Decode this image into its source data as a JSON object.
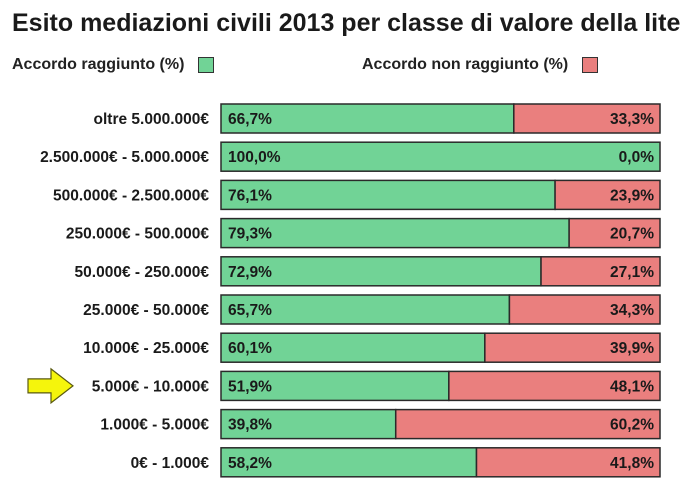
{
  "title": "Esito mediazioni civili 2013 per classe di valore della lite",
  "legend": {
    "reached_label": "Accordo raggiunto (%)",
    "not_reached_label": "Accordo non raggiunto (%)"
  },
  "colors": {
    "reached": "#71d396",
    "not_reached": "#ea7f7e",
    "bar_border": "#2a2a2a",
    "arrow_fill": "#f5f50c",
    "arrow_stroke": "#5a5a10"
  },
  "highlight": {
    "category": "5.000€ - 10.000€",
    "icon": "arrow-right-icon"
  },
  "chart_data": {
    "type": "bar",
    "orientation": "horizontal",
    "stacked": true,
    "xlim": [
      0,
      100
    ],
    "categories": [
      "oltre 5.000.000€",
      "2.500.000€ - 5.000.000€",
      "500.000€ - 2.500.000€",
      "250.000€ - 500.000€",
      "50.000€ - 250.000€",
      "25.000€ - 50.000€",
      "10.000€ - 25.000€",
      "5.000€ - 10.000€",
      "1.000€ - 5.000€",
      "0€ - 1.000€"
    ],
    "series": [
      {
        "name": "Accordo raggiunto (%)",
        "values": [
          66.7,
          100.0,
          76.1,
          79.3,
          72.9,
          65.7,
          60.1,
          51.9,
          39.8,
          58.2
        ],
        "labels": [
          "66,7%",
          "100,0%",
          "76,1%",
          "79,3%",
          "72,9%",
          "65,7%",
          "60,1%",
          "51,9%",
          "39,8%",
          "58,2%"
        ]
      },
      {
        "name": "Accordo non raggiunto (%)",
        "values": [
          33.3,
          0.0,
          23.9,
          20.7,
          27.1,
          34.3,
          39.9,
          48.1,
          60.2,
          41.8
        ],
        "labels": [
          "33,3%",
          "0,0%",
          "23,9%",
          "20,7%",
          "27,1%",
          "34,3%",
          "39,9%",
          "48,1%",
          "60,2%",
          "41,8%"
        ]
      }
    ]
  }
}
